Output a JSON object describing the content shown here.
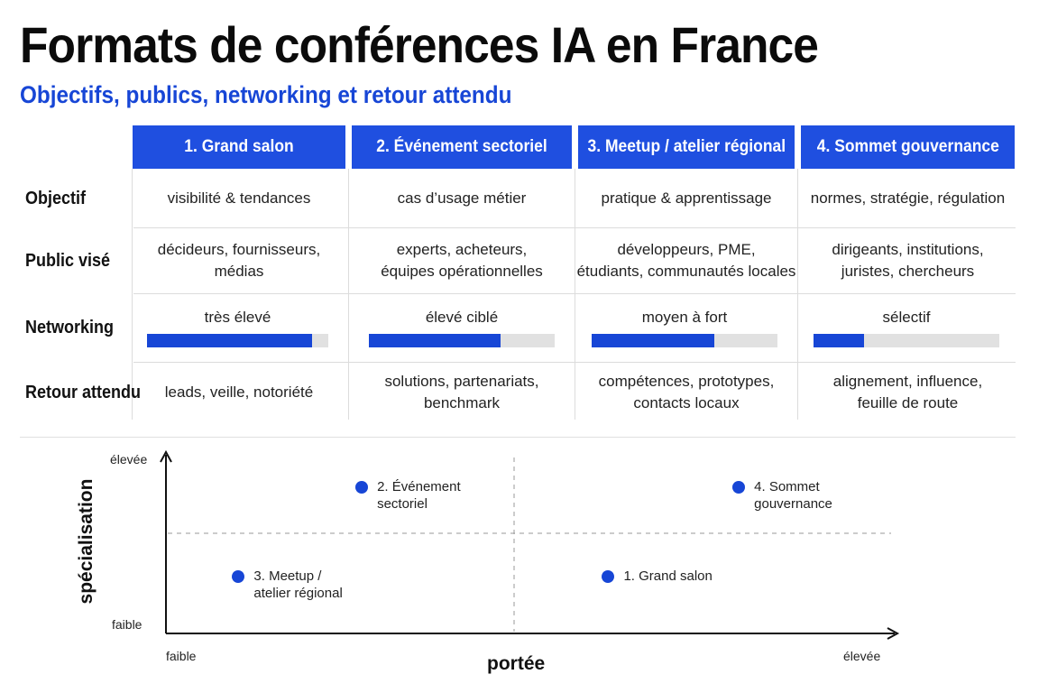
{
  "title": "Formats de conférences IA en France",
  "subtitle": "Objectifs, publics, networking et retour attendu",
  "table": {
    "columns": [
      "1. Grand salon",
      "2. Événement sectoriel",
      "3. Meetup / atelier régional",
      "4. Sommet gouvernance"
    ],
    "rows": {
      "objectif": {
        "label": "Objectif",
        "cells": [
          [
            "visibilité & tendances"
          ],
          [
            "cas d’usage métier"
          ],
          [
            "pratique & apprentissage"
          ],
          [
            "normes, stratégie, régulation"
          ]
        ]
      },
      "public": {
        "label": "Public visé",
        "cells": [
          [
            "décideurs, fournisseurs,",
            "médias"
          ],
          [
            "experts, acheteurs,",
            "équipes opérationnelles"
          ],
          [
            "développeurs, PME,",
            "étudiants, communautés locales"
          ],
          [
            "dirigeants, institutions,",
            "juristes, chercheurs"
          ]
        ]
      },
      "networking": {
        "label": "Networking",
        "levels": [
          {
            "text": "très élevé",
            "fraction": 0.91
          },
          {
            "text": "élevé ciblé",
            "fraction": 0.71
          },
          {
            "text": "moyen à fort",
            "fraction": 0.66
          },
          {
            "text": "sélectif",
            "fraction": 0.27
          }
        ],
        "bar_color": "#1746d6",
        "track_color": "#e1e1e1"
      },
      "retour": {
        "label": "Retour attendu",
        "cells": [
          [
            "leads, veille, notoriété"
          ],
          [
            "solutions, partenariats,",
            "benchmark"
          ],
          [
            "compétences, prototypes,",
            "contacts locaux"
          ],
          [
            "alignement, influence,",
            "feuille de route"
          ]
        ]
      }
    },
    "header_color": "#1f4fe0"
  },
  "quadrant": {
    "x_axis": {
      "title": "portée",
      "low": "faible",
      "high": "élevée"
    },
    "y_axis": {
      "title": "spécialisation",
      "low": "faible",
      "high": "élevée"
    },
    "points": [
      {
        "lines": [
          "2. Événement",
          "sectoriel"
        ],
        "portee": 0.27,
        "specialisation": 0.82
      },
      {
        "lines": [
          "4. Sommet",
          "gouvernance"
        ],
        "portee": 0.79,
        "specialisation": 0.82
      },
      {
        "lines": [
          "3. Meetup /",
          "atelier régional"
        ],
        "portee": 0.1,
        "specialisation": 0.32
      },
      {
        "lines": [
          "1. Grand salon"
        ],
        "portee": 0.61,
        "specialisation": 0.32
      }
    ],
    "dot_color": "#1746d6"
  }
}
